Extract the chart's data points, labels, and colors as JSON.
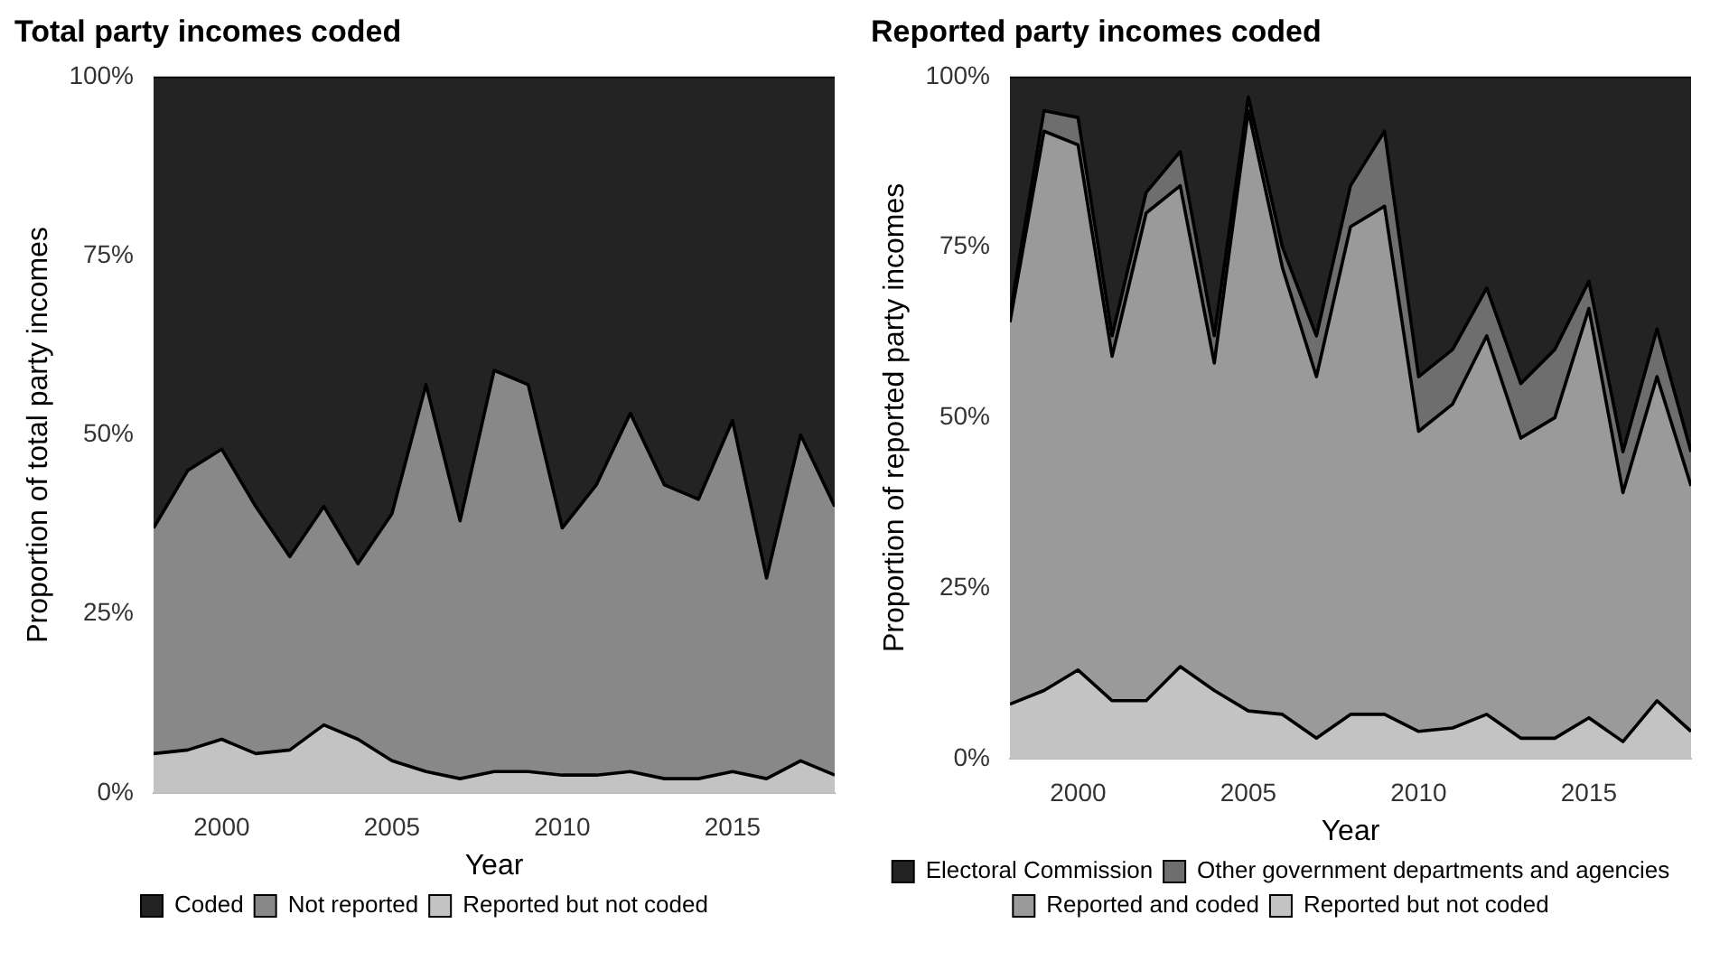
{
  "chart_data": [
    {
      "type": "area",
      "title": "Total party incomes coded",
      "xlabel": "Year",
      "ylabel": "Proportion of total party incomes",
      "stacked": true,
      "legend": "bottom",
      "grid": false,
      "x": [
        1998,
        1999,
        2000,
        2001,
        2002,
        2003,
        2004,
        2005,
        2006,
        2007,
        2008,
        2009,
        2010,
        2011,
        2012,
        2013,
        2014,
        2015,
        2016,
        2017,
        2018
      ],
      "xlim": [
        1998,
        2018
      ],
      "xticks": [
        2000,
        2005,
        2010,
        2015
      ],
      "ylim": [
        0,
        100
      ],
      "yticks": [
        {
          "value": 0,
          "label": "0%"
        },
        {
          "value": 25,
          "label": "25%"
        },
        {
          "value": 50,
          "label": "50%"
        },
        {
          "value": 75,
          "label": "75%"
        },
        {
          "value": 100,
          "label": "100%"
        }
      ],
      "series": [
        {
          "name": "Reported but not coded",
          "color": "#c3c3c3",
          "values": [
            5.5,
            6,
            7.5,
            5.5,
            6,
            9.5,
            7.5,
            4.5,
            3,
            2,
            3,
            3,
            2.5,
            2.5,
            3,
            2,
            2,
            3,
            2,
            4.5,
            2.5
          ]
        },
        {
          "name": "Not reported",
          "color": "#888888",
          "values": [
            31.5,
            39,
            40.5,
            34.5,
            27,
            30.5,
            24.5,
            34.5,
            54,
            36,
            56,
            54,
            34.5,
            40.5,
            50,
            41,
            39,
            49,
            28,
            45.5,
            37.5
          ]
        },
        {
          "name": "Coded",
          "color": "#232323",
          "values": [
            63,
            55,
            52,
            60,
            67,
            60,
            68,
            61,
            43,
            62,
            41,
            43,
            63,
            57,
            47,
            57,
            59,
            48,
            70,
            50,
            60
          ]
        }
      ]
    },
    {
      "type": "area",
      "title": "Reported party incomes coded",
      "xlabel": "Year",
      "ylabel": "Proportion of reported party incomes",
      "stacked": true,
      "legend": "bottom",
      "grid": false,
      "x": [
        1998,
        1999,
        2000,
        2001,
        2002,
        2003,
        2004,
        2005,
        2006,
        2007,
        2008,
        2009,
        2010,
        2011,
        2012,
        2013,
        2014,
        2015,
        2016,
        2017,
        2018
      ],
      "xlim": [
        1998,
        2018
      ],
      "xticks": [
        2000,
        2005,
        2010,
        2015
      ],
      "ylim": [
        0,
        100
      ],
      "yticks": [
        {
          "value": 0,
          "label": "0%"
        },
        {
          "value": 25,
          "label": "25%"
        },
        {
          "value": 50,
          "label": "50%"
        },
        {
          "value": 75,
          "label": "75%"
        },
        {
          "value": 100,
          "label": "100%"
        }
      ],
      "series": [
        {
          "name": "Reported but not coded",
          "color": "#c3c3c3",
          "values": [
            8,
            10,
            13,
            8.5,
            8.5,
            13.5,
            10,
            7,
            6.5,
            3,
            6.5,
            6.5,
            4,
            4.5,
            6.5,
            3,
            3,
            6,
            2.5,
            8.5,
            4
          ]
        },
        {
          "name": "Reported and coded",
          "color": "#9a9a9a",
          "values": [
            56,
            82,
            77,
            50.5,
            71.5,
            70.5,
            48,
            88,
            65.5,
            53,
            71.5,
            74.5,
            44,
            47.5,
            55.5,
            44,
            47,
            60,
            36.5,
            47.5,
            36
          ]
        },
        {
          "name": "Other government departments and agencies",
          "color": "#6e6e6e",
          "values": [
            1,
            3,
            4,
            3,
            3,
            5,
            4,
            2,
            3,
            6,
            6,
            11,
            8,
            8,
            7,
            8,
            10,
            4,
            6,
            7,
            5
          ]
        },
        {
          "name": "Electoral Commission",
          "color": "#232323",
          "values": [
            35,
            5,
            6,
            38,
            17,
            11,
            38,
            3,
            25,
            38,
            16,
            8,
            44,
            40,
            31,
            45,
            40,
            30,
            55,
            37,
            55
          ]
        }
      ]
    }
  ]
}
